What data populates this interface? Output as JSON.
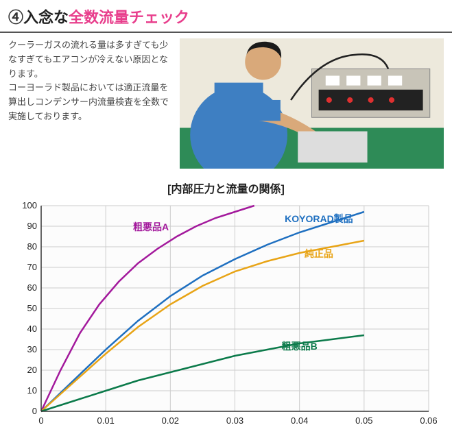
{
  "heading": {
    "num": "④",
    "black": "入念な",
    "pink": "全数流量チェック"
  },
  "description": "クーラーガスの流れる量は多すぎても少なすぎてもエアコンが冷えない原因となります。\nコーヨーラド製品においては適正流量を算出しコンデンサー内流量検査を全数で実施しております。",
  "chart": {
    "title": "[内部圧力と流量の関係]",
    "type": "line",
    "xlim": [
      0,
      0.06
    ],
    "ylim": [
      0,
      100
    ],
    "xticks": [
      0,
      0.01,
      0.02,
      0.03,
      0.04,
      0.05,
      0.06
    ],
    "yticks": [
      0,
      10,
      20,
      30,
      40,
      50,
      60,
      70,
      80,
      90,
      100
    ],
    "background_color": "#fcfcfc",
    "grid_color": "#cccccc",
    "axis_color": "#333333",
    "line_width": 2.5,
    "series": [
      {
        "name": "粗悪品A",
        "color": "#a3199c",
        "label_x": 0.017,
        "label_y": 88,
        "points": [
          [
            0,
            0
          ],
          [
            0.003,
            20
          ],
          [
            0.006,
            38
          ],
          [
            0.009,
            52
          ],
          [
            0.012,
            63
          ],
          [
            0.015,
            72
          ],
          [
            0.018,
            79
          ],
          [
            0.021,
            85
          ],
          [
            0.024,
            90
          ],
          [
            0.027,
            94
          ],
          [
            0.03,
            97
          ],
          [
            0.033,
            100
          ]
        ]
      },
      {
        "name": "KOYORAD製品",
        "color": "#1e6fc0",
        "label_x": 0.043,
        "label_y": 92,
        "points": [
          [
            0,
            0
          ],
          [
            0.005,
            15
          ],
          [
            0.01,
            30
          ],
          [
            0.015,
            44
          ],
          [
            0.02,
            56
          ],
          [
            0.025,
            66
          ],
          [
            0.03,
            74
          ],
          [
            0.035,
            81
          ],
          [
            0.04,
            87
          ],
          [
            0.045,
            92
          ],
          [
            0.05,
            97
          ]
        ]
      },
      {
        "name": "純正品",
        "color": "#e8a416",
        "label_x": 0.043,
        "label_y": 75,
        "points": [
          [
            0,
            0
          ],
          [
            0.005,
            14
          ],
          [
            0.01,
            28
          ],
          [
            0.015,
            41
          ],
          [
            0.02,
            52
          ],
          [
            0.025,
            61
          ],
          [
            0.03,
            68
          ],
          [
            0.035,
            73
          ],
          [
            0.04,
            77
          ],
          [
            0.045,
            80
          ],
          [
            0.05,
            83
          ]
        ]
      },
      {
        "name": "粗悪品B",
        "color": "#0b7a4a",
        "label_x": 0.04,
        "label_y": 30,
        "points": [
          [
            0,
            0
          ],
          [
            0.005,
            5
          ],
          [
            0.01,
            10
          ],
          [
            0.015,
            15
          ],
          [
            0.02,
            19
          ],
          [
            0.025,
            23
          ],
          [
            0.03,
            27
          ],
          [
            0.035,
            30
          ],
          [
            0.04,
            33
          ],
          [
            0.045,
            35
          ],
          [
            0.05,
            37
          ]
        ]
      }
    ]
  },
  "photo": {
    "worker_shirt": "#3e7fc2",
    "worker_skin": "#d9a97a",
    "worker_hair": "#1a1a1a",
    "table_top": "#2e8b57",
    "wall": "#ede9dc",
    "equipment_body": "#c8c4b8",
    "equipment_panel": "#222",
    "equipment_led": "#e03030"
  }
}
